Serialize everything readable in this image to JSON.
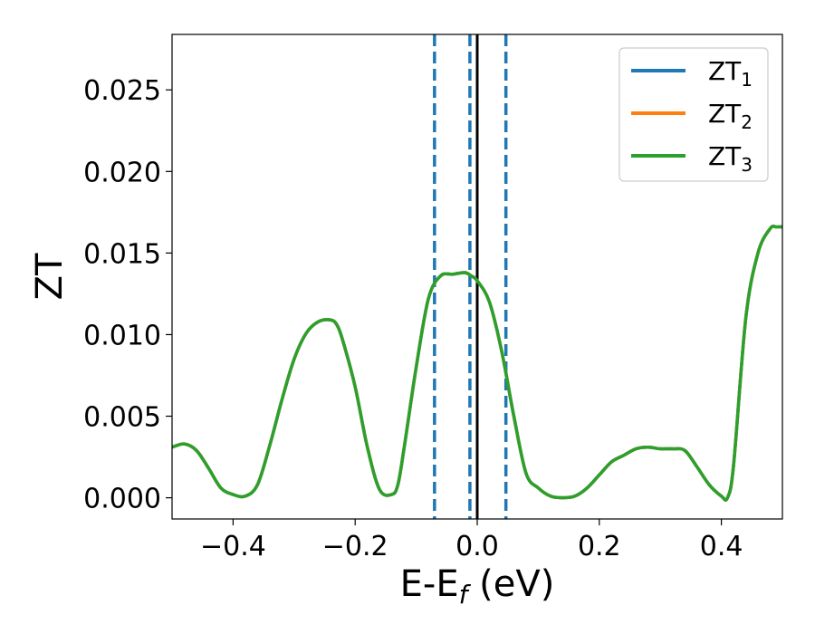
{
  "chart_data": {
    "type": "line",
    "title": "",
    "xlabel": {
      "main": "E-E",
      "sub": "f",
      "suffix": " (eV)"
    },
    "ylabel": "ZT",
    "xlim": [
      -0.5,
      0.5
    ],
    "ylim": [
      -0.0013,
      0.0284
    ],
    "x_ticks": [
      -0.4,
      -0.2,
      0.0,
      0.2,
      0.4
    ],
    "x_tick_labels": [
      "−0.4",
      "−0.2",
      "0.0",
      "0.2",
      "0.4"
    ],
    "y_ticks": [
      0.0,
      0.005,
      0.01,
      0.015,
      0.02,
      0.025
    ],
    "y_tick_labels": [
      "0.000",
      "0.005",
      "0.010",
      "0.015",
      "0.020",
      "0.025"
    ],
    "grid": false,
    "legend_position": "top-right",
    "series": [
      {
        "name": "ZT",
        "name_sub": "1",
        "color": "#1f77b4",
        "x": [
          -0.5,
          -0.48,
          -0.46,
          -0.44,
          -0.42,
          -0.4,
          -0.38,
          -0.36,
          -0.34,
          -0.32,
          -0.3,
          -0.28,
          -0.26,
          -0.24,
          -0.23,
          -0.22,
          -0.2,
          -0.18,
          -0.16,
          -0.14,
          -0.13,
          -0.12,
          -0.1,
          -0.08,
          -0.06,
          -0.04,
          -0.02,
          -0.01,
          0.0,
          0.02,
          0.04,
          0.06,
          0.08,
          0.1,
          0.12,
          0.14,
          0.16,
          0.18,
          0.2,
          0.22,
          0.24,
          0.26,
          0.28,
          0.3,
          0.32,
          0.34,
          0.36,
          0.38,
          0.4,
          0.41,
          0.42,
          0.44,
          0.46,
          0.48,
          0.49,
          0.5
        ],
        "y": [
          0.0031,
          0.0033,
          0.0029,
          0.0018,
          0.0006,
          0.0002,
          0.0001,
          0.0008,
          0.0032,
          0.006,
          0.0085,
          0.0101,
          0.0108,
          0.0109,
          0.0106,
          0.0096,
          0.0068,
          0.0031,
          0.0005,
          0.0002,
          0.0008,
          0.003,
          0.008,
          0.0122,
          0.0136,
          0.0137,
          0.0138,
          0.0136,
          0.0133,
          0.012,
          0.009,
          0.005,
          0.0015,
          0.0006,
          0.0001,
          0.0,
          0.0001,
          0.0006,
          0.0014,
          0.0022,
          0.0026,
          0.003,
          0.0031,
          0.003,
          0.003,
          0.0029,
          0.0019,
          0.0008,
          0.0001,
          0.0,
          0.002,
          0.011,
          0.015,
          0.0165,
          0.0166,
          0.0166
        ]
      },
      {
        "name": "ZT",
        "name_sub": "2",
        "color": "#ff7f0e",
        "x": [
          -0.5,
          -0.48,
          -0.46,
          -0.44,
          -0.42,
          -0.4,
          -0.38,
          -0.36,
          -0.34,
          -0.32,
          -0.3,
          -0.28,
          -0.26,
          -0.24,
          -0.23,
          -0.22,
          -0.2,
          -0.18,
          -0.16,
          -0.14,
          -0.13,
          -0.12,
          -0.1,
          -0.08,
          -0.06,
          -0.04,
          -0.02,
          -0.01,
          0.0,
          0.02,
          0.04,
          0.06,
          0.08,
          0.1,
          0.12,
          0.14,
          0.16,
          0.18,
          0.2,
          0.22,
          0.24,
          0.26,
          0.28,
          0.3,
          0.32,
          0.34,
          0.36,
          0.38,
          0.4,
          0.41,
          0.42,
          0.44,
          0.46,
          0.48,
          0.49,
          0.5
        ],
        "y": [
          0.0031,
          0.0033,
          0.0029,
          0.0018,
          0.0006,
          0.0002,
          0.0001,
          0.0008,
          0.0032,
          0.006,
          0.0085,
          0.0101,
          0.0108,
          0.0109,
          0.0106,
          0.0096,
          0.0068,
          0.0031,
          0.0005,
          0.0002,
          0.0008,
          0.003,
          0.008,
          0.0122,
          0.0136,
          0.0137,
          0.0138,
          0.0136,
          0.0133,
          0.012,
          0.009,
          0.005,
          0.0015,
          0.0006,
          0.0001,
          0.0,
          0.0001,
          0.0006,
          0.0014,
          0.0022,
          0.0026,
          0.003,
          0.0031,
          0.003,
          0.003,
          0.0029,
          0.0019,
          0.0008,
          0.0001,
          0.0,
          0.002,
          0.011,
          0.015,
          0.0165,
          0.0166,
          0.0166
        ]
      },
      {
        "name": "ZT",
        "name_sub": "3",
        "color": "#2ca02c",
        "x": [
          -0.5,
          -0.48,
          -0.46,
          -0.44,
          -0.42,
          -0.4,
          -0.38,
          -0.36,
          -0.34,
          -0.32,
          -0.3,
          -0.28,
          -0.26,
          -0.24,
          -0.23,
          -0.22,
          -0.2,
          -0.18,
          -0.16,
          -0.14,
          -0.13,
          -0.12,
          -0.1,
          -0.08,
          -0.06,
          -0.04,
          -0.02,
          -0.01,
          0.0,
          0.02,
          0.04,
          0.06,
          0.08,
          0.1,
          0.12,
          0.14,
          0.16,
          0.18,
          0.2,
          0.22,
          0.24,
          0.26,
          0.28,
          0.3,
          0.32,
          0.34,
          0.36,
          0.38,
          0.4,
          0.41,
          0.42,
          0.44,
          0.46,
          0.48,
          0.49,
          0.5
        ],
        "y": [
          0.0031,
          0.0033,
          0.0029,
          0.0018,
          0.0006,
          0.0002,
          0.0001,
          0.0008,
          0.0032,
          0.006,
          0.0085,
          0.0101,
          0.0108,
          0.0109,
          0.0106,
          0.0096,
          0.0068,
          0.0031,
          0.0005,
          0.0002,
          0.0008,
          0.003,
          0.008,
          0.0122,
          0.0136,
          0.0137,
          0.0138,
          0.0136,
          0.0133,
          0.012,
          0.009,
          0.005,
          0.0015,
          0.0006,
          0.0001,
          0.0,
          0.0001,
          0.0006,
          0.0014,
          0.0022,
          0.0026,
          0.003,
          0.0031,
          0.003,
          0.003,
          0.0029,
          0.0019,
          0.0008,
          0.0001,
          0.0,
          0.002,
          0.011,
          0.015,
          0.0165,
          0.0166,
          0.0166
        ]
      }
    ],
    "vlines": [
      {
        "x": -0.07,
        "style": "dashed",
        "color": "#1f77b4"
      },
      {
        "x": -0.012,
        "style": "dashed",
        "color": "#1f77b4"
      },
      {
        "x": 0.047,
        "style": "dashed",
        "color": "#1f77b4"
      },
      {
        "x": 0.0,
        "style": "solid",
        "color": "#000000"
      }
    ]
  }
}
